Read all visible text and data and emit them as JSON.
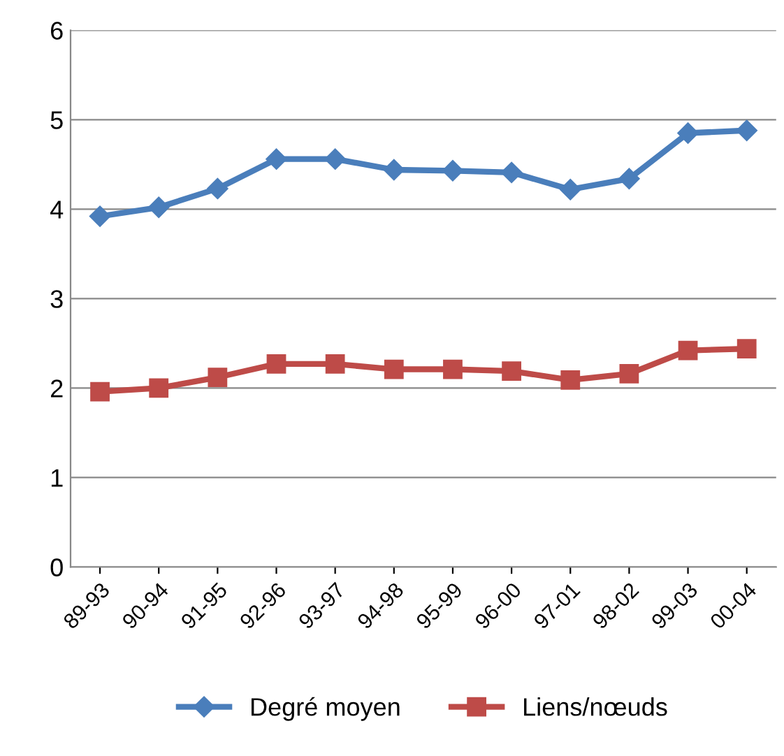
{
  "chart_data": {
    "type": "line",
    "categories": [
      "89-93",
      "90-94",
      "91-95",
      "92-96",
      "93-97",
      "94-98",
      "95-99",
      "96-00",
      "97-01",
      "98-02",
      "99-03",
      "00-04"
    ],
    "series": [
      {
        "name": "Degré moyen",
        "color": "#4a7ebb",
        "marker": "diamond",
        "values": [
          3.92,
          4.02,
          4.23,
          4.56,
          4.56,
          4.44,
          4.43,
          4.41,
          4.22,
          4.34,
          4.85,
          4.88
        ]
      },
      {
        "name": "Liens/nœuds",
        "color": "#be4b48",
        "marker": "square",
        "values": [
          1.96,
          2.0,
          2.12,
          2.27,
          2.27,
          2.21,
          2.21,
          2.19,
          2.09,
          2.16,
          2.42,
          2.44
        ]
      }
    ],
    "ylim": [
      0,
      6
    ],
    "yticks": [
      0,
      1,
      2,
      3,
      4,
      5,
      6
    ],
    "grid": "y",
    "legend": "bottom",
    "line_style": "solid"
  }
}
